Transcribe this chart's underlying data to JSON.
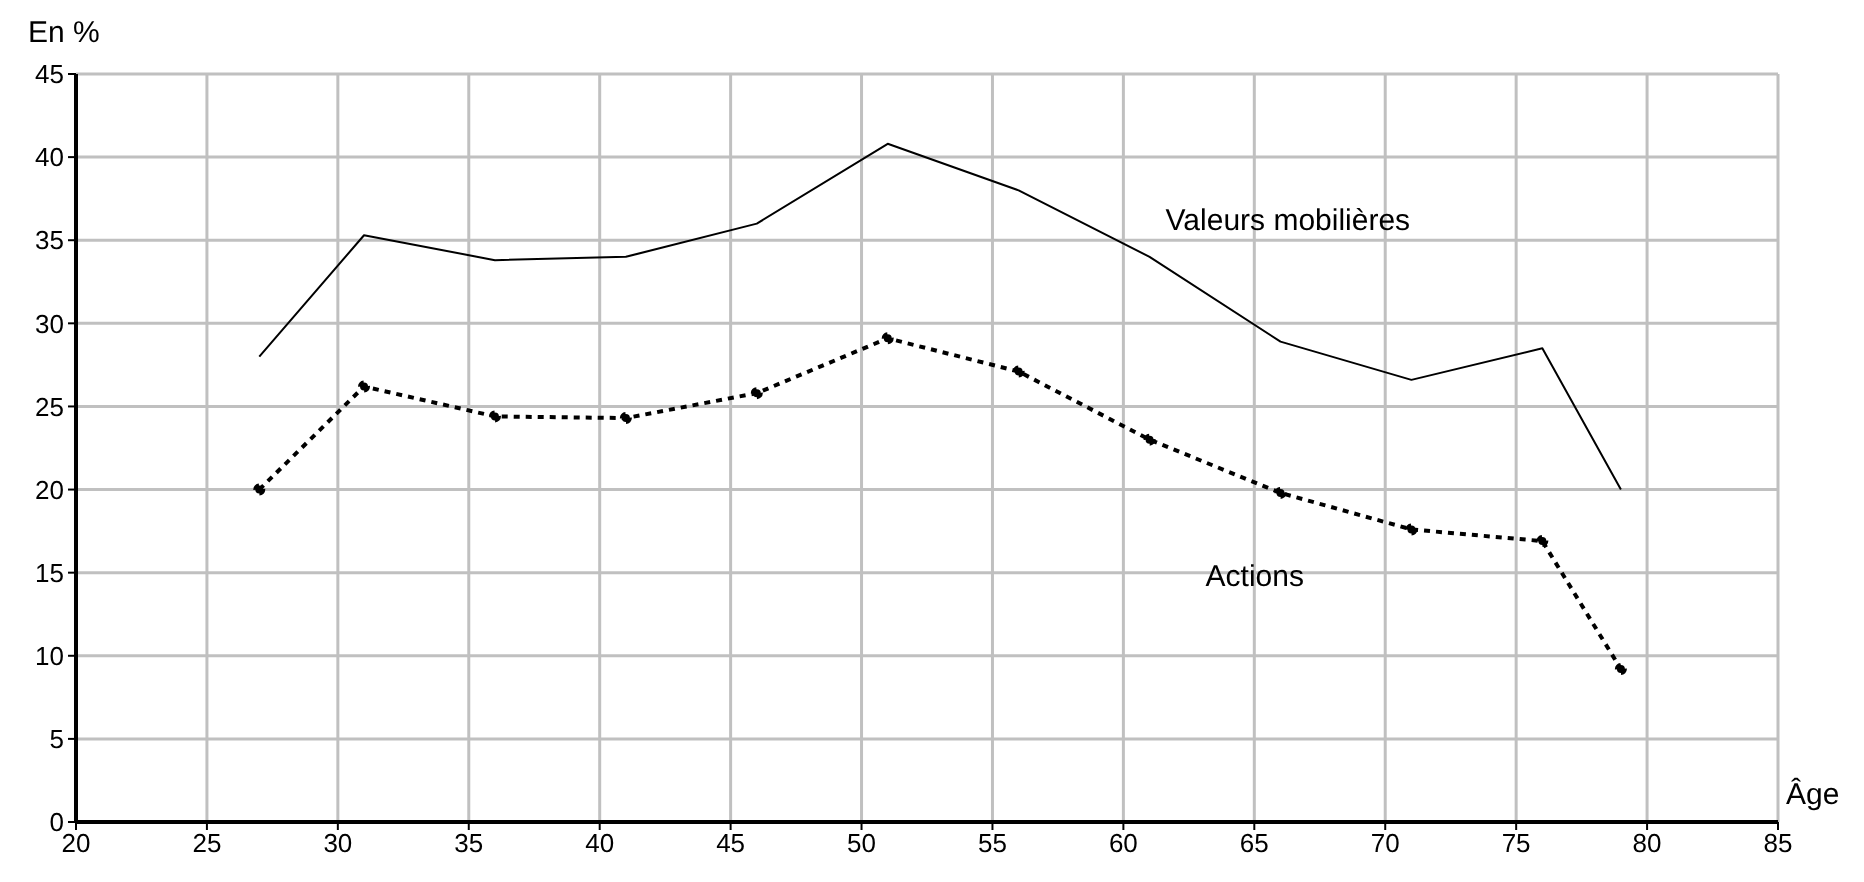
{
  "chart_data": {
    "type": "line",
    "ylabel": "En %",
    "xlabel": "Âge",
    "x": [
      27,
      31,
      36,
      41,
      46,
      51,
      56,
      61,
      66,
      71,
      76,
      79
    ],
    "series": [
      {
        "name": "Valeurs mobilières",
        "color": "#000000",
        "values": [
          28,
          35.3,
          33.8,
          34,
          36,
          40.8,
          38,
          34,
          28.9,
          26.6,
          28.5,
          20
        ],
        "marker": "none",
        "line_style": "solid"
      },
      {
        "name": "Actions",
        "color": "#000000",
        "values": [
          20,
          26.2,
          24.4,
          24.3,
          25.8,
          29.1,
          27.1,
          23,
          19.8,
          17.6,
          16.9,
          9.2
        ],
        "marker": "circle",
        "line_style": "dotted"
      }
    ],
    "xlim": [
      20,
      85
    ],
    "xticks": [
      20,
      25,
      30,
      35,
      40,
      45,
      50,
      55,
      60,
      65,
      70,
      75,
      80,
      85
    ],
    "ylim": [
      0,
      45
    ],
    "yticks": [
      0,
      5,
      10,
      15,
      20,
      25,
      30,
      35,
      40,
      45
    ],
    "grid": true
  }
}
